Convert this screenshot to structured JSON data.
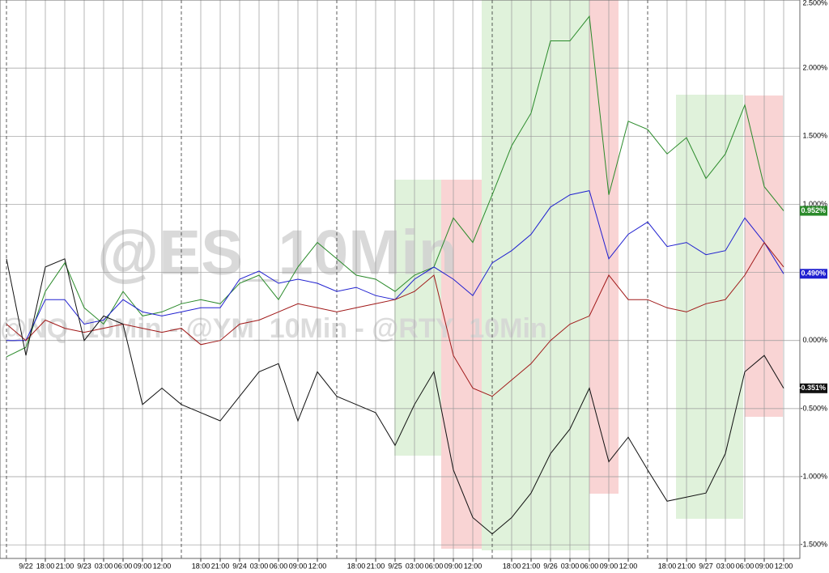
{
  "chart_data": {
    "type": "line",
    "watermark": "@ES_10Min",
    "watermark_sub": "@NQ_10Min - @YM_10Min - @RTY_10Min",
    "categories": [
      null,
      "9/22",
      "18:00",
      "21:00",
      "9/23",
      "03:00",
      "06:00",
      "09:00",
      "12:00",
      null,
      "18:00",
      "21:00",
      "9/24",
      "03:00",
      "06:00",
      "09:00",
      "12:00",
      null,
      "18:00",
      "21:00",
      "9/25",
      "03:00",
      "06:00",
      "09:00",
      "12:00",
      null,
      "18:00",
      "21:00",
      "9/26",
      "03:00",
      "06:00",
      "09:00",
      "12:00",
      null,
      "18:00",
      "21:00",
      "9/27",
      "03:00",
      "06:00",
      "09:00",
      "12:00"
    ],
    "ylim": [
      -1.6,
      2.5
    ],
    "yticks": [
      {
        "value": 2.5,
        "label": "2.500%"
      },
      {
        "value": 2,
        "label": "2.000%"
      },
      {
        "value": 1.5,
        "label": "1.500%"
      },
      {
        "value": 1,
        "label": "1.000%"
      },
      {
        "value": 0.5,
        "label": "0.500%"
      },
      {
        "value": 0,
        "label": "0.000%"
      },
      {
        "value": -0.5,
        "label": "-0.500%"
      },
      {
        "value": -1,
        "label": "-1.000%"
      },
      {
        "value": -1.5,
        "label": "-1.500%"
      }
    ],
    "grid": true,
    "series": [
      {
        "color": "#2a8a2a",
        "end_label": "0.952%",
        "values": [
          -0.12,
          -0.05,
          0.36,
          0.57,
          0.24,
          0.12,
          0.36,
          0.18,
          0.21,
          0.27,
          0.3,
          0.27,
          0.42,
          0.48,
          0.3,
          0.54,
          0.72,
          0.6,
          0.48,
          0.45,
          0.36,
          0.48,
          0.54,
          0.9,
          0.72,
          1.07,
          1.43,
          1.67,
          2.2,
          2.2,
          2.38,
          1.07,
          1.61,
          1.55,
          1.37,
          1.49,
          1.19,
          1.37,
          1.73,
          1.13,
          0.952
        ]
      },
      {
        "color": "#2020d0",
        "end_label": "0.490%",
        "values": [
          0.0,
          0.0,
          0.3,
          0.3,
          0.12,
          0.15,
          0.3,
          0.21,
          0.18,
          0.21,
          0.24,
          0.24,
          0.45,
          0.51,
          0.42,
          0.45,
          0.42,
          0.36,
          0.39,
          0.33,
          0.3,
          0.45,
          0.54,
          0.45,
          0.33,
          0.57,
          0.66,
          0.78,
          0.98,
          1.07,
          1.1,
          0.6,
          0.78,
          0.87,
          0.69,
          0.72,
          0.63,
          0.66,
          0.9,
          0.72,
          0.49
        ]
      },
      {
        "color": "#a01818",
        "values": [
          0.12,
          0.0,
          0.15,
          0.09,
          0.06,
          0.09,
          0.12,
          0.09,
          0.06,
          0.09,
          -0.03,
          0.0,
          0.12,
          0.15,
          0.21,
          0.27,
          0.24,
          0.21,
          0.24,
          0.27,
          0.3,
          0.36,
          0.48,
          -0.11,
          -0.35,
          -0.41,
          -0.29,
          -0.17,
          0.0,
          0.12,
          0.18,
          0.48,
          0.3,
          0.3,
          0.24,
          0.21,
          0.27,
          0.3,
          0.48,
          0.72,
          0.54
        ]
      },
      {
        "color": "#111111",
        "end_label": "-0.351%",
        "values": [
          0.6,
          -0.11,
          0.54,
          0.6,
          0.0,
          0.18,
          0.12,
          -0.47,
          -0.35,
          -0.47,
          -0.53,
          -0.59,
          -0.41,
          -0.23,
          -0.17,
          -0.59,
          -0.23,
          -0.41,
          -0.47,
          -0.53,
          -0.77,
          -0.47,
          -0.23,
          -0.95,
          -1.3,
          -1.42,
          -1.3,
          -1.12,
          -0.83,
          -0.65,
          -0.35,
          -0.89,
          -0.71,
          -0.95,
          -1.18,
          -1.15,
          -1.12,
          -0.83,
          -0.23,
          -0.11,
          -0.351
        ]
      }
    ]
  }
}
